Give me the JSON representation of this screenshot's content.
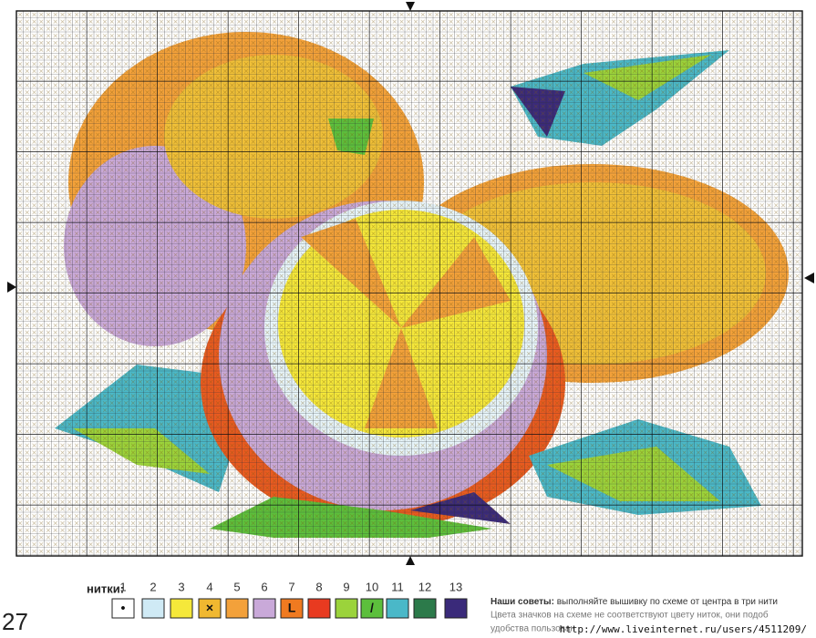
{
  "legend": {
    "label": "нитки:",
    "items": [
      {
        "number": "1",
        "symbol": "•"
      },
      {
        "number": "2"
      },
      {
        "number": "3"
      },
      {
        "number": "4",
        "symbol": "×"
      },
      {
        "number": "5"
      },
      {
        "number": "6"
      },
      {
        "number": "7",
        "symbol": "L"
      },
      {
        "number": "8"
      },
      {
        "number": "9"
      },
      {
        "number": "10",
        "symbol": "/"
      },
      {
        "number": "11"
      },
      {
        "number": "12"
      },
      {
        "number": "13"
      }
    ]
  },
  "page_number": "27",
  "tips": {
    "title": "Наши советы:",
    "lines": [
      "выполняйте вышивку по схеме от центра в три нити",
      "Цвета значков на схеме не соответствуют цвету ниток, они подоб",
      "удобства пользован"
    ]
  },
  "watermark": "http://www.liveinternet.ru/users/4511209/"
}
